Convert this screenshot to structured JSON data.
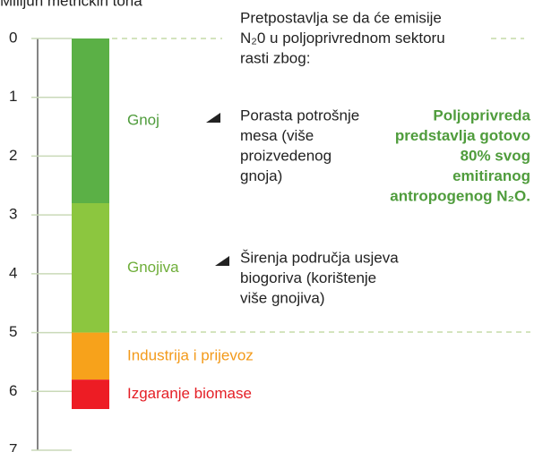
{
  "chart_data": {
    "type": "bar",
    "y_axis_label": "Milijun metričkih tona",
    "categories": [
      null
    ],
    "series": [
      {
        "name": "Gnoj",
        "color": "#5bb046",
        "label_color": "#4f9c3c",
        "values": [
          2.8
        ]
      },
      {
        "name": "Gnojiva",
        "color": "#8cc63f",
        "label_color": "#6fae3a",
        "values": [
          2.2
        ]
      },
      {
        "name": "Industrija i prijevoz",
        "color": "#f7a21b",
        "label_color": "#f39a1a",
        "values": [
          0.8
        ]
      },
      {
        "name": "Izgaranje biomase",
        "color": "#ed1c24",
        "label_color": "#e41f26",
        "values": [
          0.5
        ]
      }
    ],
    "ylim": [
      0,
      7
    ],
    "yticks": [
      0,
      1,
      2,
      3,
      4,
      5,
      6,
      7
    ],
    "y_inverted": true,
    "intro": [
      "Pretpostavlja se da će emisije",
      "N₂0 u poljoprivrednom sektoru",
      "rasti zbog:"
    ],
    "reasons": [
      [
        "Porasta potrošnje",
        "mesa (više",
        "proizvedenog",
        "gnoja)"
      ],
      [
        "Širenja područja usjeva",
        "biogoriva (korištenje",
        "više gnojiva)"
      ]
    ],
    "highlight": [
      "Poljoprivreda",
      "predstavlja gotovo",
      "80% svog",
      "emitiranog",
      "antropogenog N₂O."
    ]
  }
}
